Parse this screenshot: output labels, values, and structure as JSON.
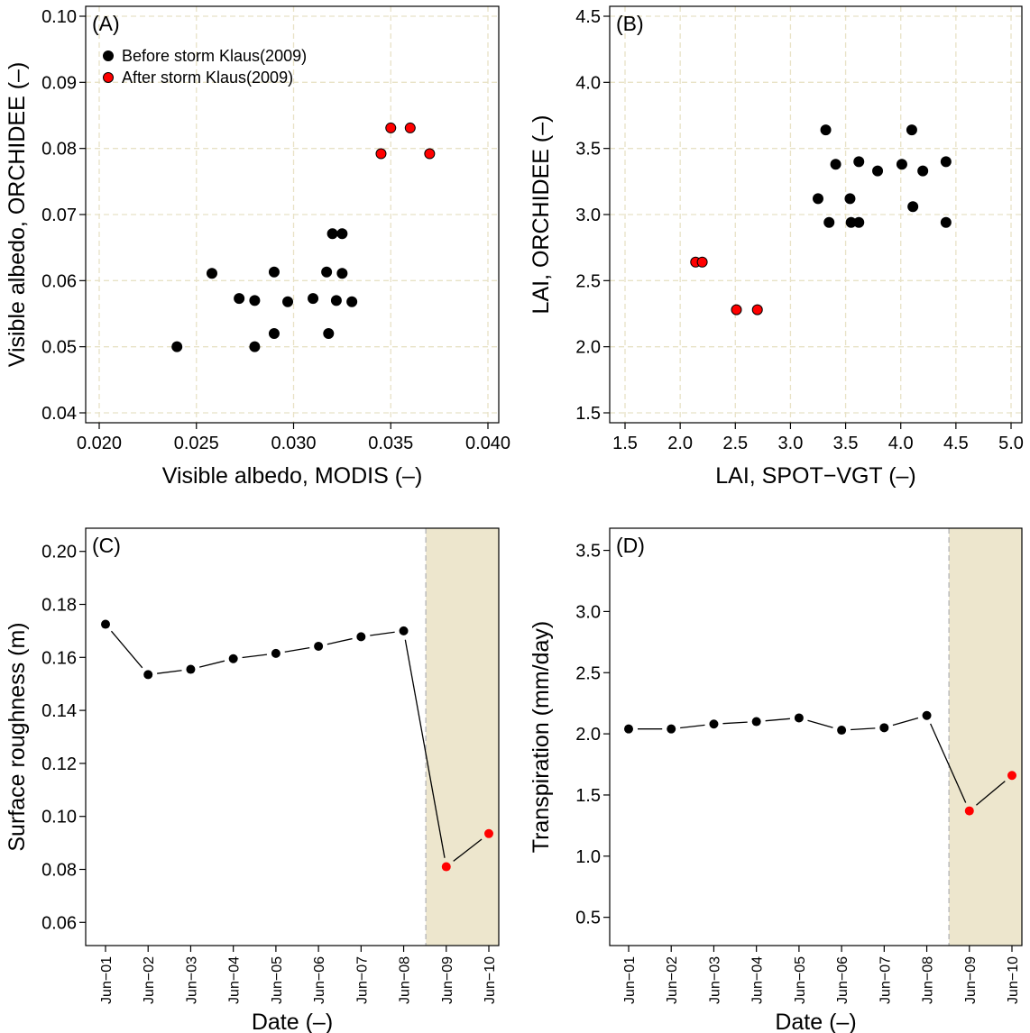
{
  "colors": {
    "before": "#000000",
    "after": "#ff0000",
    "grid": "#e8e2c6",
    "storm_band": "#ede6cd",
    "storm_line": "#bdbdbd"
  },
  "chart_data": [
    {
      "panel_label": "(A)",
      "type": "scatter",
      "xlabel": "Visible albedo, MODIS (–)",
      "ylabel": "Visible albedo, ORCHIDEE (–)",
      "xlim": [
        0.02,
        0.04
      ],
      "ylim": [
        0.04,
        0.1
      ],
      "xticks": [
        "0.020",
        "0.025",
        "0.030",
        "0.035",
        "0.040"
      ],
      "yticks": [
        "0.04",
        "0.05",
        "0.06",
        "0.07",
        "0.08",
        "0.09",
        "0.10"
      ],
      "grid": true,
      "legend_placement": "top-left",
      "series": [
        {
          "name": "Before storm Klaus(2009)",
          "color": "#000000",
          "x": [
            0.024,
            0.0258,
            0.0272,
            0.028,
            0.028,
            0.029,
            0.029,
            0.0297,
            0.031,
            0.0317,
            0.0318,
            0.032,
            0.0322,
            0.0325,
            0.0325,
            0.033
          ],
          "y": [
            0.05,
            0.0611,
            0.0573,
            0.057,
            0.05,
            0.0613,
            0.052,
            0.0568,
            0.0573,
            0.0613,
            0.052,
            0.0671,
            0.057,
            0.0611,
            0.0671,
            0.0568
          ]
        },
        {
          "name": "After storm Klaus(2009)",
          "color": "#ff0000",
          "x": [
            0.0345,
            0.035,
            0.036,
            0.037
          ],
          "y": [
            0.0792,
            0.0831,
            0.0831,
            0.0792
          ]
        }
      ]
    },
    {
      "panel_label": "(B)",
      "type": "scatter",
      "xlabel": "LAI, SPOT−VGT (–)",
      "ylabel": "LAI, ORCHIDEE (–)",
      "xlim": [
        1.5,
        5.0
      ],
      "ylim": [
        1.5,
        4.5
      ],
      "xticks": [
        "1.5",
        "2.0",
        "2.5",
        "3.0",
        "3.5",
        "4.0",
        "4.5",
        "5.0"
      ],
      "yticks": [
        "1.5",
        "2.0",
        "2.5",
        "3.0",
        "3.5",
        "4.0",
        "4.5"
      ],
      "grid": true,
      "series": [
        {
          "name": "Before storm Klaus(2009)",
          "color": "#000000",
          "x": [
            3.25,
            3.32,
            3.35,
            3.41,
            3.54,
            3.55,
            3.62,
            3.62,
            3.79,
            4.01,
            4.1,
            4.11,
            4.2,
            4.41,
            4.41
          ],
          "y": [
            3.12,
            3.64,
            2.94,
            3.38,
            3.12,
            2.94,
            3.4,
            2.94,
            3.33,
            3.38,
            3.64,
            3.06,
            3.33,
            3.4,
            2.94
          ]
        },
        {
          "name": "After storm Klaus(2009)",
          "color": "#ff0000",
          "x": [
            2.14,
            2.2,
            2.51,
            2.7
          ],
          "y": [
            2.64,
            2.64,
            2.28,
            2.28
          ]
        }
      ]
    },
    {
      "panel_label": "(C)",
      "type": "line",
      "xlabel": "Date (–)",
      "ylabel": "Surface roughness (m)",
      "categories": [
        "Jun−01",
        "Jun−02",
        "Jun−03",
        "Jun−04",
        "Jun−05",
        "Jun−06",
        "Jun−07",
        "Jun−08",
        "Jun−09",
        "Jun−10"
      ],
      "values": [
        0.1725,
        0.1535,
        0.1555,
        0.1595,
        0.1615,
        0.1642,
        0.1678,
        0.17,
        0.081,
        0.0935
      ],
      "point_colors": [
        "#000000",
        "#000000",
        "#000000",
        "#000000",
        "#000000",
        "#000000",
        "#000000",
        "#000000",
        "#ff0000",
        "#ff0000"
      ],
      "ylim": [
        0.055,
        0.205
      ],
      "yticks": [
        "0.06",
        "0.08",
        "0.10",
        "0.12",
        "0.14",
        "0.16",
        "0.18",
        "0.20"
      ],
      "grid": false,
      "storm_after_index": 7
    },
    {
      "panel_label": "(D)",
      "type": "line",
      "xlabel": "Date (–)",
      "ylabel": "Transpiration (mm/day)",
      "categories": [
        "Jun−01",
        "Jun−02",
        "Jun−03",
        "Jun−04",
        "Jun−05",
        "Jun−06",
        "Jun−07",
        "Jun−08",
        "Jun−09",
        "Jun−10"
      ],
      "values": [
        2.04,
        2.04,
        2.08,
        2.1,
        2.13,
        2.03,
        2.05,
        2.15,
        1.37,
        1.66
      ],
      "point_colors": [
        "#000000",
        "#000000",
        "#000000",
        "#000000",
        "#000000",
        "#000000",
        "#000000",
        "#000000",
        "#ff0000",
        "#ff0000"
      ],
      "ylim": [
        0.35,
        3.6
      ],
      "yticks": [
        "0.5",
        "1.0",
        "1.5",
        "2.0",
        "2.5",
        "3.0",
        "3.5"
      ],
      "grid": false,
      "storm_after_index": 7
    }
  ]
}
